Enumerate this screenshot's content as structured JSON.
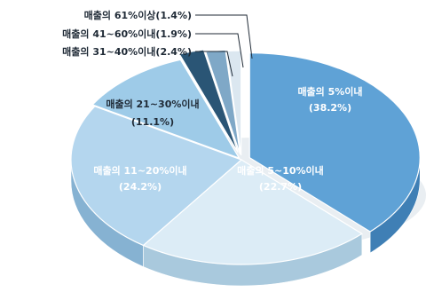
{
  "chart_data": {
    "type": "pie",
    "style": "3d-exploded",
    "legend": "callouts",
    "slices": [
      {
        "label": "매출의 5%이내",
        "value_label": "(38.2%)",
        "value": 38.2,
        "color": "#5fa2d6",
        "side": "#3f7fb5",
        "text": "#ffffff",
        "inside": true
      },
      {
        "label": "매출의 5~10%이내",
        "value_label": "(22.7%)",
        "value": 22.7,
        "color": "#dcecf6",
        "side": "#a9c9dd",
        "text": "#ffffff",
        "inside": true
      },
      {
        "label": "매출의 11~20%이내",
        "value_label": "(24.2%)",
        "value": 24.2,
        "color": "#b4d6ee",
        "side": "#86b2d2",
        "text": "#ffffff",
        "inside": true
      },
      {
        "label": "매출의 21~30%이내",
        "value_label": "(11.1%)",
        "value": 11.1,
        "color": "#9ecbe8",
        "side": "#6ea4c8",
        "text": "#1f2a36",
        "inside": false,
        "label_at": "left"
      },
      {
        "label": "매출의 31~40%이내",
        "value_label": "(2.4%)",
        "value": 2.4,
        "color": "#2a5575",
        "side": "#1b3a52",
        "text": "#1f2a36",
        "inside": false,
        "label_at": "callout"
      },
      {
        "label": "매출의 41~60%이내",
        "value_label": "(1.9%)",
        "value": 1.9,
        "color": "#7fa8c7",
        "side": "#5a83a2",
        "text": "#1f2a36",
        "inside": false,
        "label_at": "callout"
      },
      {
        "label": "매출의 61%이상",
        "value_label": "(1.4%)",
        "value": 1.4,
        "color": "#dbe7f0",
        "side": "#aec1d0",
        "text": "#1f2a36",
        "inside": false,
        "label_at": "callout"
      }
    ]
  }
}
